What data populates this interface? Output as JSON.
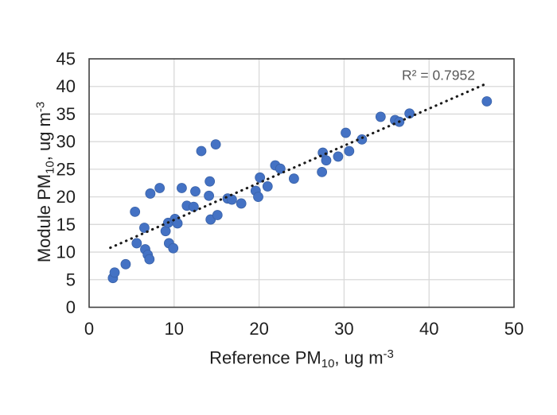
{
  "chart_data": {
    "type": "scatter",
    "title": "",
    "xlabel_parts": [
      {
        "t": "Reference PM"
      },
      {
        "t": "10",
        "sub": true
      },
      {
        "t": ", ug m"
      },
      {
        "t": "-3",
        "sup": true
      }
    ],
    "ylabel_parts": [
      {
        "t": "Module PM"
      },
      {
        "t": "10",
        "sub": true
      },
      {
        "t": ", ug m"
      },
      {
        "t": "-3",
        "sup": true
      }
    ],
    "annotation": {
      "text": "R² = 0.7952",
      "x": 41.2,
      "y": 42.0,
      "color": "#595959"
    },
    "xlim": [
      0,
      50
    ],
    "ylim": [
      0,
      45
    ],
    "xticks": [
      0,
      10,
      20,
      30,
      40,
      50
    ],
    "yticks": [
      0,
      5,
      10,
      15,
      20,
      25,
      30,
      35,
      40,
      45
    ],
    "grid": true,
    "legend": "none",
    "marker_color": "#4472C4",
    "marker_edge_color": "#3a62a7",
    "gridline_color": "#d9d9d9",
    "border_color": "#404040",
    "tick_label_color": "#1f1f1f",
    "trendline": {
      "style": "dotted",
      "color": "#1a1a1a",
      "slope": 0.672,
      "intercept": 9.1,
      "x_start": 2.5,
      "x_end": 46.5
    },
    "points": [
      [
        2.8,
        5.3
      ],
      [
        3.0,
        6.3
      ],
      [
        4.3,
        7.8
      ],
      [
        5.4,
        17.3
      ],
      [
        5.6,
        11.6
      ],
      [
        6.5,
        14.4
      ],
      [
        6.6,
        10.5
      ],
      [
        6.9,
        9.5
      ],
      [
        7.1,
        8.7
      ],
      [
        7.2,
        20.6
      ],
      [
        8.3,
        21.6
      ],
      [
        9.0,
        13.8
      ],
      [
        9.3,
        15.3
      ],
      [
        9.4,
        11.6
      ],
      [
        9.9,
        10.7
      ],
      [
        10.1,
        16.0
      ],
      [
        10.4,
        15.2
      ],
      [
        10.9,
        21.6
      ],
      [
        11.5,
        18.4
      ],
      [
        12.3,
        18.2
      ],
      [
        12.5,
        21.0
      ],
      [
        13.2,
        28.3
      ],
      [
        14.1,
        20.2
      ],
      [
        14.2,
        22.8
      ],
      [
        14.3,
        15.9
      ],
      [
        14.9,
        29.5
      ],
      [
        15.1,
        16.7
      ],
      [
        16.3,
        19.7
      ],
      [
        16.8,
        19.5
      ],
      [
        17.9,
        18.8
      ],
      [
        19.6,
        21.1
      ],
      [
        19.9,
        20.0
      ],
      [
        20.1,
        23.5
      ],
      [
        21.0,
        21.9
      ],
      [
        21.9,
        25.7
      ],
      [
        22.5,
        25.1
      ],
      [
        24.1,
        23.3
      ],
      [
        27.4,
        24.5
      ],
      [
        27.5,
        28.0
      ],
      [
        27.9,
        26.6
      ],
      [
        29.3,
        27.3
      ],
      [
        30.2,
        31.6
      ],
      [
        30.6,
        28.3
      ],
      [
        32.1,
        30.4
      ],
      [
        34.3,
        34.5
      ],
      [
        36.0,
        33.9
      ],
      [
        36.5,
        33.6
      ],
      [
        37.7,
        35.1
      ],
      [
        46.8,
        37.3
      ]
    ]
  }
}
